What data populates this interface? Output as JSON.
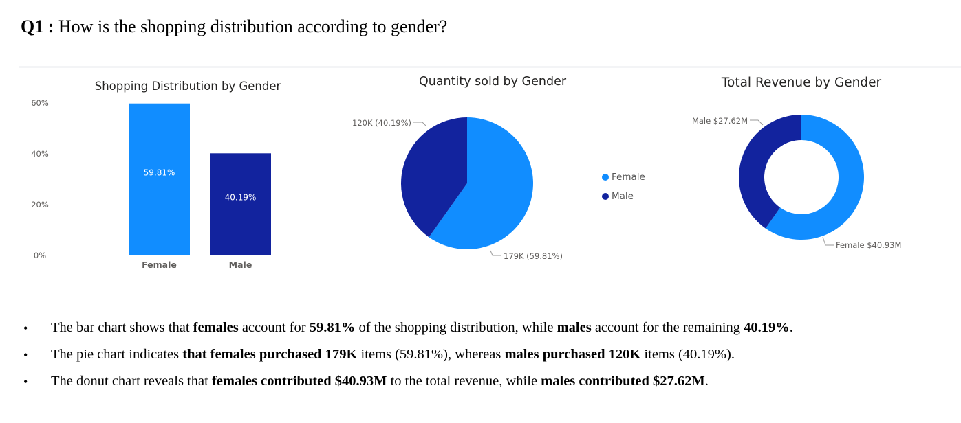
{
  "question": {
    "label": "Q1",
    "separator": " : ",
    "text": "How is the shopping distribution according to gender?"
  },
  "colors": {
    "female": "#118dff",
    "male": "#12239e"
  },
  "legend": [
    {
      "label": "Female",
      "color": "#118dff"
    },
    {
      "label": "Male",
      "color": "#12239e"
    }
  ],
  "chart_data": [
    {
      "type": "bar",
      "title": "Shopping Distribution by Gender",
      "categories": [
        "Female",
        "Male"
      ],
      "values": [
        59.81,
        40.19
      ],
      "data_labels": [
        "59.81%",
        "40.19%"
      ],
      "yticks": [
        "0%",
        "20%",
        "40%",
        "60%"
      ],
      "ylim": [
        0,
        60
      ],
      "colors": [
        "#118dff",
        "#12239e"
      ]
    },
    {
      "type": "pie",
      "title": "Quantity sold by Gender",
      "categories": [
        "Female",
        "Male"
      ],
      "values": [
        59.81,
        40.19
      ],
      "data_labels": [
        "179K (59.81%)",
        "120K (40.19%)"
      ],
      "colors": [
        "#118dff",
        "#12239e"
      ]
    },
    {
      "type": "pie",
      "subtype": "donut",
      "title": "Total Revenue by Gender",
      "categories": [
        "Female",
        "Male"
      ],
      "values": [
        40.93,
        27.62
      ],
      "data_labels": [
        "Female $40.93M",
        "Male $27.62M"
      ],
      "colors": [
        "#118dff",
        "#12239e"
      ]
    }
  ],
  "bullets": [
    [
      {
        "t": "The bar chart shows that ",
        "b": false
      },
      {
        "t": "females",
        "b": true
      },
      {
        "t": " account for ",
        "b": false
      },
      {
        "t": "59.81%",
        "b": true
      },
      {
        "t": " of the shopping distribution, while ",
        "b": false
      },
      {
        "t": "males",
        "b": true
      },
      {
        "t": " account for the remaining ",
        "b": false
      },
      {
        "t": "40.19%",
        "b": true
      },
      {
        "t": ".",
        "b": false
      }
    ],
    [
      {
        "t": "The pie chart indicates ",
        "b": false
      },
      {
        "t": "that females purchased 179K",
        "b": true
      },
      {
        "t": " items (59.81%), whereas ",
        "b": false
      },
      {
        "t": "males purchased 120K",
        "b": true
      },
      {
        "t": " items (40.19%).",
        "b": false
      }
    ],
    [
      {
        "t": "The donut chart reveals that ",
        "b": false
      },
      {
        "t": "females contributed $40.93M",
        "b": true
      },
      {
        "t": " to the total revenue, while ",
        "b": false
      },
      {
        "t": "males contributed $27.62M",
        "b": true
      },
      {
        "t": ".",
        "b": false
      }
    ]
  ]
}
